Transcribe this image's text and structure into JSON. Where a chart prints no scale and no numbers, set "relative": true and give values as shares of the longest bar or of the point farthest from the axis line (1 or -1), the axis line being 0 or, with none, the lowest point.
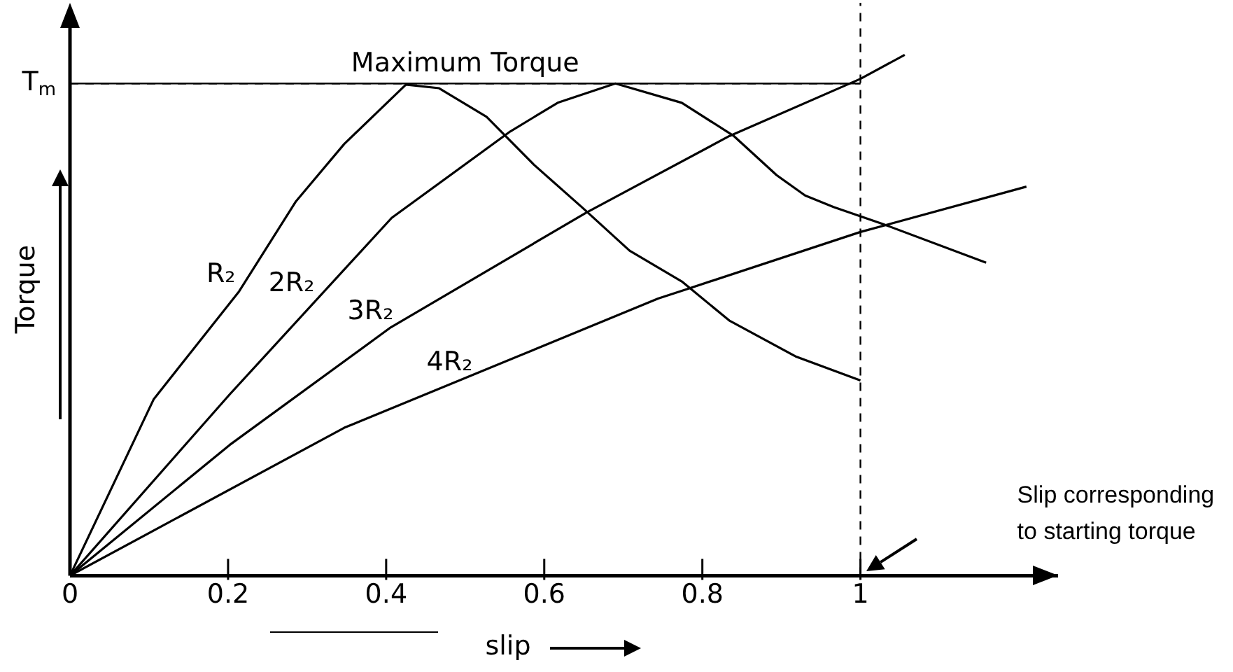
{
  "chart_data": {
    "type": "line",
    "relative": true,
    "xlabel": "slip",
    "ylabel": "Torque",
    "x": [
      0,
      0.106,
      0.214,
      0.286,
      0.347,
      0.425,
      0.467,
      0.527,
      0.587,
      0.648,
      0.708,
      0.774,
      0.834,
      0.918,
      1.0
    ],
    "xlim": [
      0,
      1.25
    ],
    "xticks": [
      0,
      0.2,
      0.4,
      0.6,
      0.8,
      1
    ],
    "series": [
      {
        "name": "R₂",
        "color": "#000000",
        "values": [
          0,
          0.339,
          0.546,
          0.719,
          0.829,
          0.943,
          0.936,
          0.881,
          0.789,
          0.707,
          0.624,
          0.565,
          0.49,
          0.421,
          0.375
        ]
      },
      {
        "name": "2R₂",
        "color": "#000000",
        "x": [
          0,
          0.202,
          0.407,
          0.557,
          0.617,
          0.69,
          0.774,
          0.84,
          0.894,
          0.93,
          0.966,
          1.027,
          1.159
        ],
        "values": [
          0,
          0.348,
          0.687,
          0.853,
          0.908,
          0.945,
          0.908,
          0.844,
          0.769,
          0.73,
          0.708,
          0.676,
          0.601
        ]
      },
      {
        "name": "3R₂",
        "color": "#000000",
        "x": [
          0,
          0.202,
          0.406,
          0.653,
          0.834,
          1.0,
          1.056
        ],
        "values": [
          0,
          0.251,
          0.477,
          0.697,
          0.844,
          0.954,
          1.0
        ]
      },
      {
        "name": "4R₂",
        "color": "#000000",
        "x": [
          0,
          0.347,
          0.744,
          0.78,
          1.0,
          1.21
        ],
        "values": [
          0,
          0.284,
          0.532,
          0.55,
          0.66,
          0.747
        ]
      }
    ],
    "ref_lines": [
      {
        "axis": "y",
        "value": 0.945,
        "label": "Maximum Torque",
        "line_style": "dashed",
        "color": "#000000"
      },
      {
        "axis": "x",
        "value": 1,
        "line_style": "dashed",
        "color": "#000000"
      }
    ],
    "annotations": [
      {
        "text": "T$_{m}$",
        "x": 0,
        "y": 0.945
      },
      "Slip  corresponding to starting torque"
    ],
    "legend": false,
    "grid": false,
    "marker": "none",
    "line_style": "solid"
  }
}
